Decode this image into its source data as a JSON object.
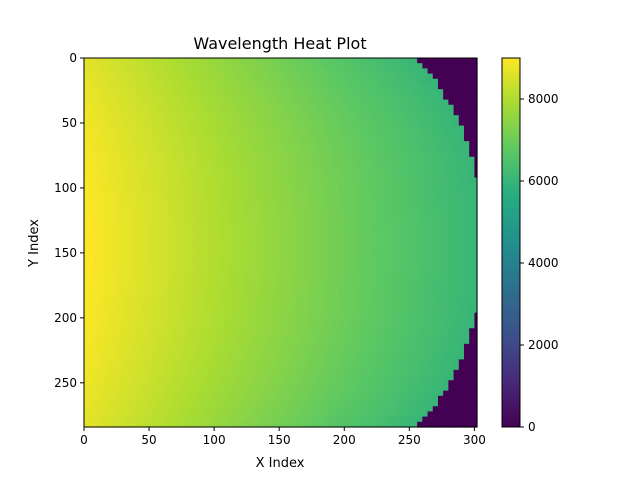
{
  "chart_data": {
    "type": "heatmap",
    "title": "Wavelength Heat Plot",
    "xlabel": "X Index",
    "ylabel": "Y Index",
    "xlim": [
      0,
      302
    ],
    "ylim": [
      284,
      0
    ],
    "y_axis_inverted": true,
    "x_ticks": [
      0,
      50,
      100,
      150,
      200,
      250,
      300
    ],
    "y_ticks": [
      0,
      50,
      100,
      150,
      200,
      250
    ],
    "colormap": "viridis",
    "color_range": [
      0,
      9000
    ],
    "colorbar_ticks": [
      0,
      2000,
      4000,
      6000,
      8000
    ],
    "value_at_left_edge_center": 9000,
    "value_at_curved_boundary": 6000,
    "value_outside_boundary": 0,
    "boundary_x_by_y": [
      {
        "y": 0,
        "x": 255
      },
      {
        "y": 10,
        "x": 265
      },
      {
        "y": 22,
        "x": 272
      },
      {
        "y": 35,
        "x": 280
      },
      {
        "y": 47,
        "x": 287
      },
      {
        "y": 60,
        "x": 292
      },
      {
        "y": 72,
        "x": 296
      },
      {
        "y": 85,
        "x": 299
      },
      {
        "y": 95,
        "x": 301
      },
      {
        "y": 142,
        "x": 302
      },
      {
        "y": 190,
        "x": 301
      },
      {
        "y": 200,
        "x": 298
      },
      {
        "y": 210,
        "x": 295
      },
      {
        "y": 222,
        "x": 291
      },
      {
        "y": 235,
        "x": 286
      },
      {
        "y": 247,
        "x": 280
      },
      {
        "y": 260,
        "x": 272
      },
      {
        "y": 272,
        "x": 263
      },
      {
        "y": 284,
        "x": 248
      }
    ]
  }
}
